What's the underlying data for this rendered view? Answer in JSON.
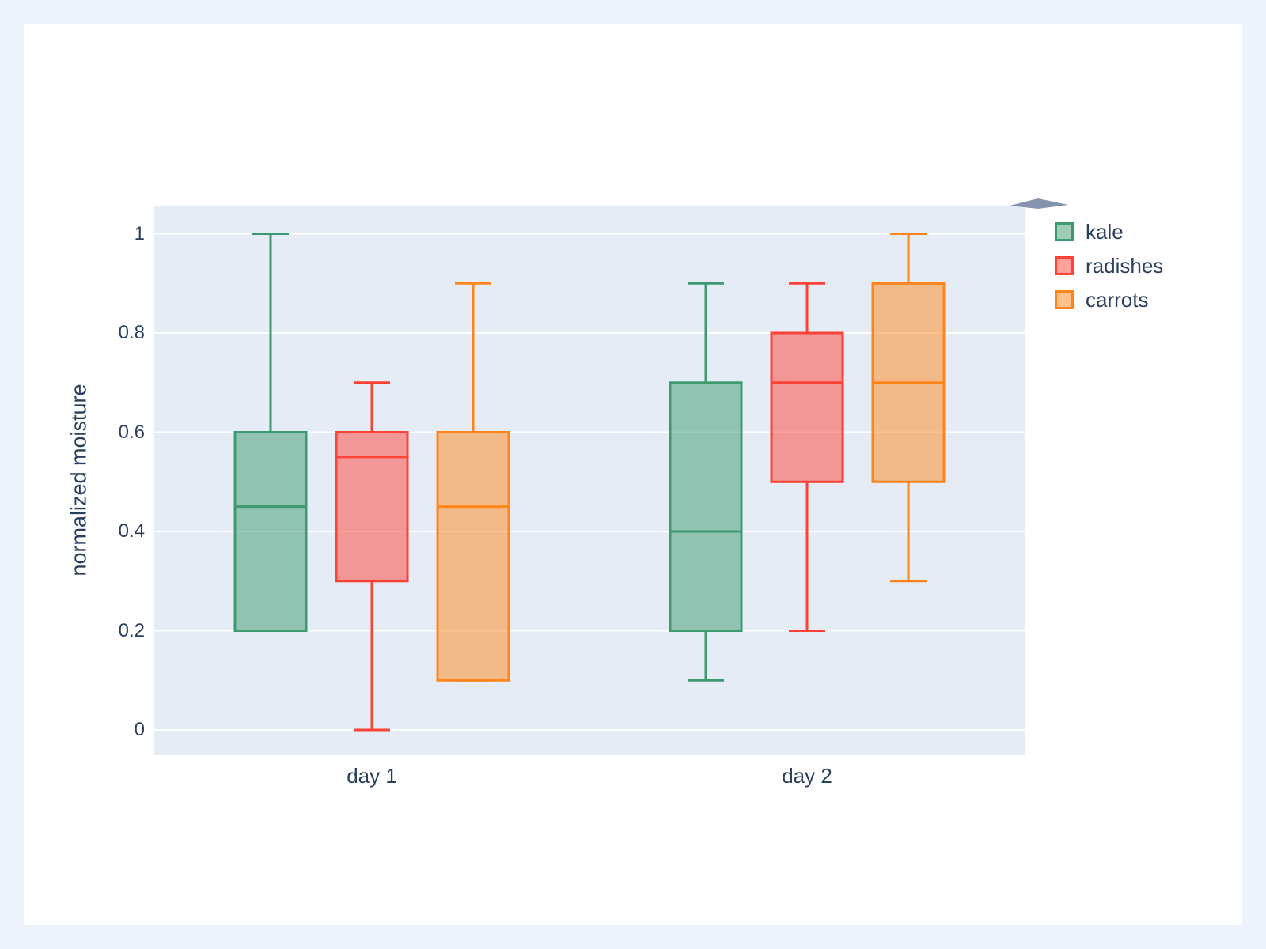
{
  "colors": {
    "page_bg": "#eef2fb",
    "card_bg": "#ffffff",
    "plot_bg": "#e5ecf6",
    "grid": "#ffffff",
    "text": "#2a3f5f"
  },
  "chart_data": {
    "type": "box",
    "boxmode": "group",
    "title": "",
    "xlabel": "",
    "ylabel": "normalized moisture",
    "categories": [
      "day 1",
      "day 2"
    ],
    "yticks": {
      "values": [
        0,
        0.2,
        0.4,
        0.6,
        0.8,
        1
      ],
      "labels": [
        "0",
        "0.2",
        "0.4",
        "0.6",
        "0.8",
        "1"
      ]
    },
    "ylim": [
      -0.05,
      1.06
    ],
    "grid": true,
    "legend_position": "top-right-outside",
    "series": [
      {
        "name": "kale",
        "color": "#3D9970",
        "boxes": [
          {
            "category": "day 1",
            "low": 0.2,
            "q1": 0.2,
            "median": 0.45,
            "q3": 0.6,
            "high": 1.0
          },
          {
            "category": "day 2",
            "low": 0.1,
            "q1": 0.2,
            "median": 0.4,
            "q3": 0.7,
            "high": 0.9
          }
        ]
      },
      {
        "name": "radishes",
        "color": "#FF4136",
        "boxes": [
          {
            "category": "day 1",
            "low": 0.0,
            "q1": 0.3,
            "median": 0.55,
            "q3": 0.6,
            "high": 0.7
          },
          {
            "category": "day 2",
            "low": 0.2,
            "q1": 0.5,
            "median": 0.7,
            "q3": 0.8,
            "high": 0.9
          }
        ]
      },
      {
        "name": "carrots",
        "color": "#FF851B",
        "boxes": [
          {
            "category": "day 1",
            "low": 0.1,
            "q1": 0.1,
            "median": 0.45,
            "q3": 0.6,
            "high": 0.9
          },
          {
            "category": "day 2",
            "low": 0.3,
            "q1": 0.5,
            "median": 0.7,
            "q3": 0.9,
            "high": 1.0
          }
        ]
      }
    ]
  }
}
